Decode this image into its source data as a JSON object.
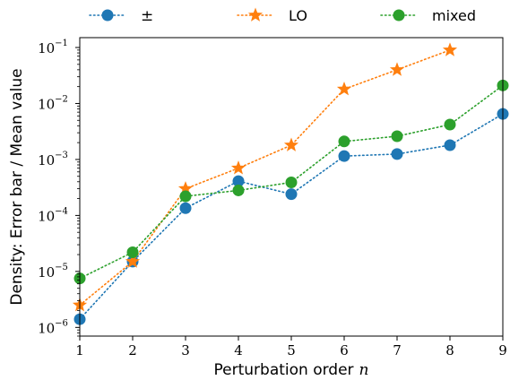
{
  "chart_data": {
    "type": "line",
    "yscale": "log",
    "x": [
      1,
      2,
      3,
      4,
      5,
      6,
      7,
      8,
      9
    ],
    "xlim": [
      1,
      9
    ],
    "ylim": [
      7e-07,
      0.15
    ],
    "xlabel": "Perturbation order",
    "xlabel_var": "n",
    "ylabel": "Density: Error bar / Mean value",
    "x_ticks": [
      "1",
      "2",
      "3",
      "4",
      "5",
      "6",
      "7",
      "8",
      "9"
    ],
    "y_ticks": [
      {
        "base": "10",
        "exp": "−1",
        "value": 0.1
      },
      {
        "base": "10",
        "exp": "−2",
        "value": 0.01
      },
      {
        "base": "10",
        "exp": "−3",
        "value": 0.001
      },
      {
        "base": "10",
        "exp": "−4",
        "value": 0.0001
      },
      {
        "base": "10",
        "exp": "−5",
        "value": 1e-05
      },
      {
        "base": "10",
        "exp": "−6",
        "value": 1e-06
      }
    ],
    "legend_position": "top (outside plot)",
    "series": [
      {
        "name": "±",
        "color": "#1f77b4",
        "marker": "circle",
        "x": [
          1,
          2,
          3,
          4,
          5,
          6,
          7,
          8,
          9
        ],
        "values": [
          1.4e-06,
          1.5e-05,
          0.000135,
          0.00041,
          0.00024,
          0.00115,
          0.00125,
          0.0018,
          0.0065
        ]
      },
      {
        "name": "LO",
        "color": "#ff7f0e",
        "marker": "star",
        "x": [
          1,
          2,
          3,
          4,
          5,
          6,
          7,
          8
        ],
        "values": [
          2.5e-06,
          1.5e-05,
          0.0003,
          0.0007,
          0.0018,
          0.018,
          0.04,
          0.09
        ]
      },
      {
        "name": "mixed",
        "color": "#2ca02c",
        "marker": "circle",
        "x": [
          1,
          2,
          3,
          4,
          5,
          6,
          7,
          8,
          9
        ],
        "values": [
          7.5e-06,
          2.2e-05,
          0.00022,
          0.00028,
          0.00039,
          0.0021,
          0.0026,
          0.0042,
          0.021
        ]
      }
    ]
  }
}
